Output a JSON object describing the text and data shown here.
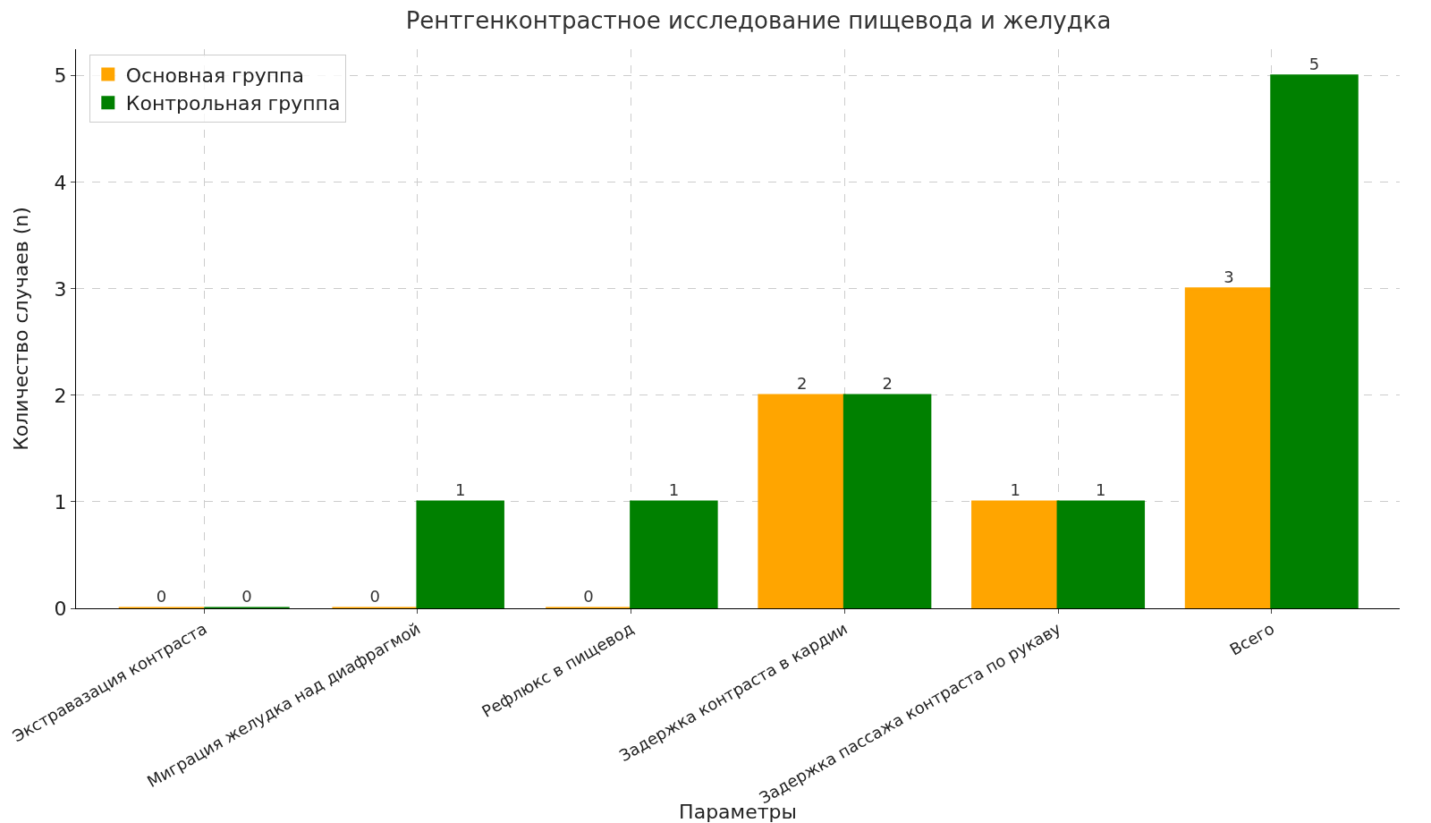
{
  "chart_data": {
    "type": "bar",
    "title": "Рентгенконтрастное исследование пищевода и желудка",
    "xlabel": "Параметры",
    "ylabel": "Количество случаев (n)",
    "categories": [
      "Экстравазация контраста",
      "Миграция желудка над диафрагмой",
      "Рефлюкс в пищевод",
      "Задержка контраста в кардии",
      "Задержка пассажа контраста по рукаву",
      "Всего"
    ],
    "series": [
      {
        "name": "Основная группа",
        "color": "#ffa500",
        "values": [
          0,
          0,
          0,
          2,
          1,
          3
        ]
      },
      {
        "name": "Контрольная группа",
        "color": "#008000",
        "values": [
          0,
          1,
          1,
          2,
          1,
          5
        ]
      }
    ],
    "ylim": [
      0,
      5.25
    ],
    "yticks": [
      0,
      1,
      2,
      3,
      4,
      5
    ],
    "grid": true,
    "legend": "top left",
    "data_labels": true
  }
}
